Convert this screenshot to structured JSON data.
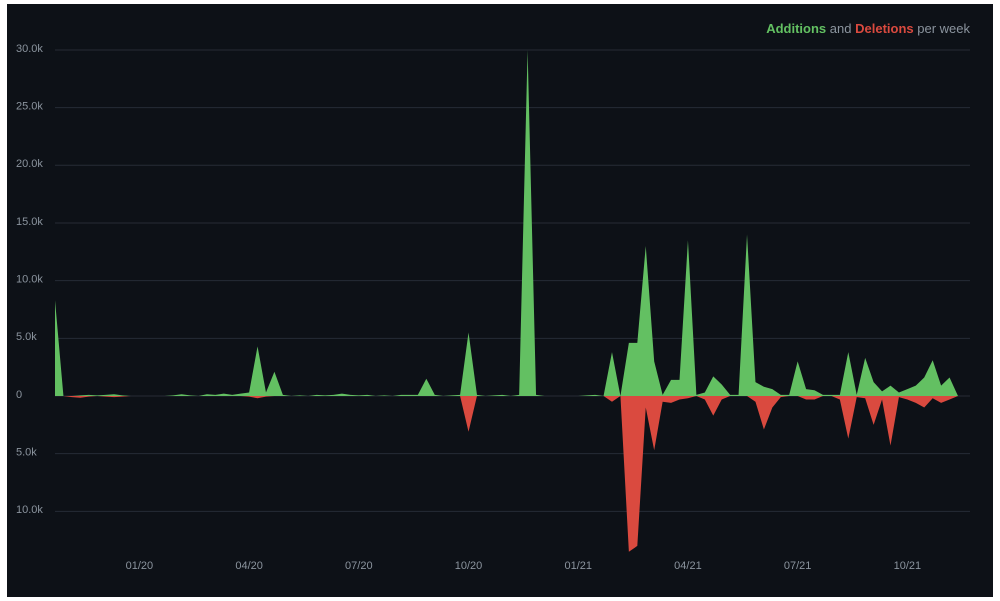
{
  "chart_data": {
    "type": "area",
    "title_connector": "and",
    "title_suffix": "per week",
    "categories": [
      null,
      null,
      null,
      null,
      null,
      null,
      null,
      null,
      null,
      null,
      "01/20",
      null,
      null,
      null,
      null,
      null,
      null,
      null,
      null,
      null,
      null,
      null,
      null,
      "04/20",
      null,
      null,
      null,
      null,
      null,
      null,
      null,
      null,
      null,
      null,
      null,
      null,
      "07/20",
      null,
      null,
      null,
      null,
      null,
      null,
      null,
      null,
      null,
      null,
      null,
      null,
      "10/20",
      null,
      null,
      null,
      null,
      null,
      null,
      null,
      null,
      null,
      null,
      null,
      null,
      "01/21",
      null,
      null,
      null,
      null,
      null,
      null,
      null,
      null,
      null,
      null,
      null,
      null,
      "04/21",
      null,
      null,
      null,
      null,
      null,
      null,
      null,
      null,
      null,
      null,
      null,
      null,
      "07/21",
      null,
      null,
      null,
      null,
      null,
      null,
      null,
      null,
      null,
      null,
      null,
      null,
      "10/21",
      null,
      null,
      null,
      null,
      null,
      null
    ],
    "series": [
      {
        "name": "Additions",
        "color": "#63c062",
        "values": [
          8300,
          0,
          0,
          50,
          100,
          50,
          100,
          150,
          50,
          0,
          0,
          0,
          0,
          0,
          50,
          150,
          50,
          0,
          150,
          100,
          200,
          100,
          200,
          300,
          4300,
          300,
          2100,
          100,
          0,
          50,
          0,
          100,
          50,
          100,
          200,
          100,
          50,
          100,
          0,
          50,
          0,
          100,
          100,
          100,
          1500,
          100,
          0,
          50,
          100,
          5500,
          100,
          0,
          50,
          100,
          0,
          100,
          30000,
          100,
          0,
          0,
          0,
          0,
          0,
          50,
          100,
          0,
          3800,
          0,
          4600,
          4600,
          13000,
          3000,
          100,
          1400,
          1400,
          13500,
          100,
          300,
          1700,
          1000,
          100,
          100,
          14000,
          1200,
          800,
          600,
          100,
          100,
          3000,
          600,
          500,
          100,
          100,
          100,
          3800,
          100,
          3300,
          1200,
          400,
          900,
          300,
          600,
          900,
          1600,
          3100,
          900,
          1600,
          0
        ]
      },
      {
        "name": "Deletions",
        "color": "#da4a3f",
        "values": [
          0,
          0,
          -100,
          -150,
          -50,
          0,
          -50,
          -100,
          -50,
          0,
          0,
          0,
          0,
          0,
          0,
          0,
          0,
          0,
          0,
          0,
          0,
          0,
          0,
          -50,
          -200,
          -50,
          0,
          0,
          0,
          0,
          0,
          0,
          0,
          0,
          0,
          0,
          0,
          0,
          0,
          0,
          0,
          0,
          0,
          0,
          0,
          0,
          0,
          0,
          0,
          -3100,
          0,
          0,
          0,
          0,
          0,
          0,
          0,
          0,
          0,
          0,
          0,
          0,
          0,
          0,
          0,
          0,
          -500,
          0,
          -13500,
          -13000,
          -1000,
          -4700,
          -500,
          -600,
          -300,
          -200,
          0,
          -300,
          -1700,
          -300,
          0,
          0,
          0,
          -500,
          -2900,
          -1000,
          -100,
          0,
          0,
          -300,
          -300,
          0,
          0,
          -300,
          -3700,
          -100,
          -200,
          -2500,
          -300,
          -4300,
          -100,
          -300,
          -600,
          -1000,
          -200,
          -600,
          -300,
          0
        ]
      }
    ],
    "ylim": [
      -13500,
      30500
    ],
    "yticks": [
      {
        "value": 30000,
        "label": "30.0k"
      },
      {
        "value": 25000,
        "label": "25.0k"
      },
      {
        "value": 20000,
        "label": "20.0k"
      },
      {
        "value": 15000,
        "label": "15.0k"
      },
      {
        "value": 10000,
        "label": "10.0k"
      },
      {
        "value": 5000,
        "label": "5.0k"
      },
      0,
      {
        "value": -5000,
        "label": "5.0k"
      },
      {
        "value": -10000,
        "label": "10.0k"
      }
    ],
    "grid": true
  }
}
